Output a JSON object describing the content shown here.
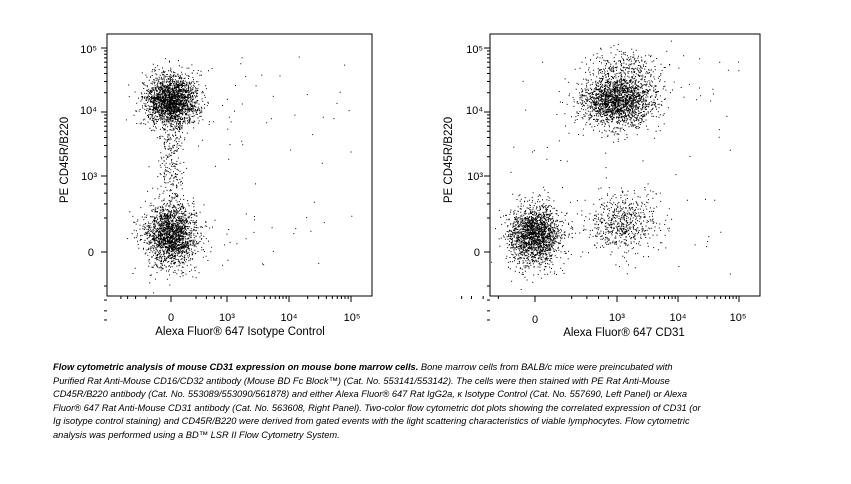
{
  "chart_data": [
    {
      "type": "scatter",
      "panel": "left",
      "xlabel": "Alexa Fluor® 647 Isotype Control",
      "ylabel": "PE CD45R/B220",
      "x_scale": "biexponential",
      "y_scale": "biexponential",
      "xlim": [
        -300,
        100000
      ],
      "ylim": [
        -300,
        200000
      ],
      "x_ticks": [
        "0",
        "10³",
        "10⁴",
        "10⁵"
      ],
      "y_ticks": [
        "0",
        "10³",
        "10⁴",
        "10⁵"
      ],
      "populations": [
        {
          "name": "",
          "x_center": 0,
          "y_center": 15000,
          "events": 2200
        },
        {
          "name": "",
          "x_center": 0,
          "y_center": 50,
          "events": 1900
        },
        {
          "name": "",
          "x_center": 0,
          "y_center": 1500,
          "events": 250
        }
      ]
    },
    {
      "type": "scatter",
      "panel": "right",
      "xlabel": "Alexa Fluor® 647 CD31",
      "ylabel": "PE CD45R/B220",
      "x_scale": "biexponential",
      "y_scale": "biexponential",
      "xlim": [
        -300,
        100000
      ],
      "ylim": [
        -300,
        200000
      ],
      "x_ticks": [
        "0",
        "10³",
        "10⁴",
        "10⁵"
      ],
      "y_ticks": [
        "0",
        "10³",
        "10⁴",
        "10⁵"
      ],
      "populations": [
        {
          "name": "",
          "x_center": 1000,
          "y_center": 15000,
          "events": 1900
        },
        {
          "name": "",
          "x_center": 1500,
          "y_center": 40000,
          "events": 350
        },
        {
          "name": "",
          "x_center": 0,
          "y_center": 50,
          "events": 1900
        },
        {
          "name": "",
          "x_center": 1200,
          "y_center": 150,
          "events": 600
        }
      ]
    }
  ],
  "caption": {
    "title": "Flow cytometric analysis of mouse CD31 expression on mouse bone marrow cells.",
    "body": " Bone marrow cells from BALB/c mice were preincubated with Purified Rat Anti-Mouse CD16/CD32 antibody (Mouse BD Fc Block™) (Cat. No. 553141/553142). The cells were then stained with PE Rat Anti-Mouse CD45R/B220 antibody (Cat. No. 553089/553090/561878) and either Alexa Fluor® 647 Rat IgG2a, κ Isotype Control (Cat. No. 557690, Left Panel) or Alexa Fluor® 647 Rat Anti-Mouse CD31 antibody (Cat. No. 563608, Right Panel). Two-color flow cytometric dot plots showing the correlated expression of CD31 (or Ig isotype control staining) and CD45R/B220 were derived from gated events with the light scattering characteristics of viable lymphocytes. Flow cytometric analysis was performed using a BD™ LSR II Flow Cytometry System."
  }
}
